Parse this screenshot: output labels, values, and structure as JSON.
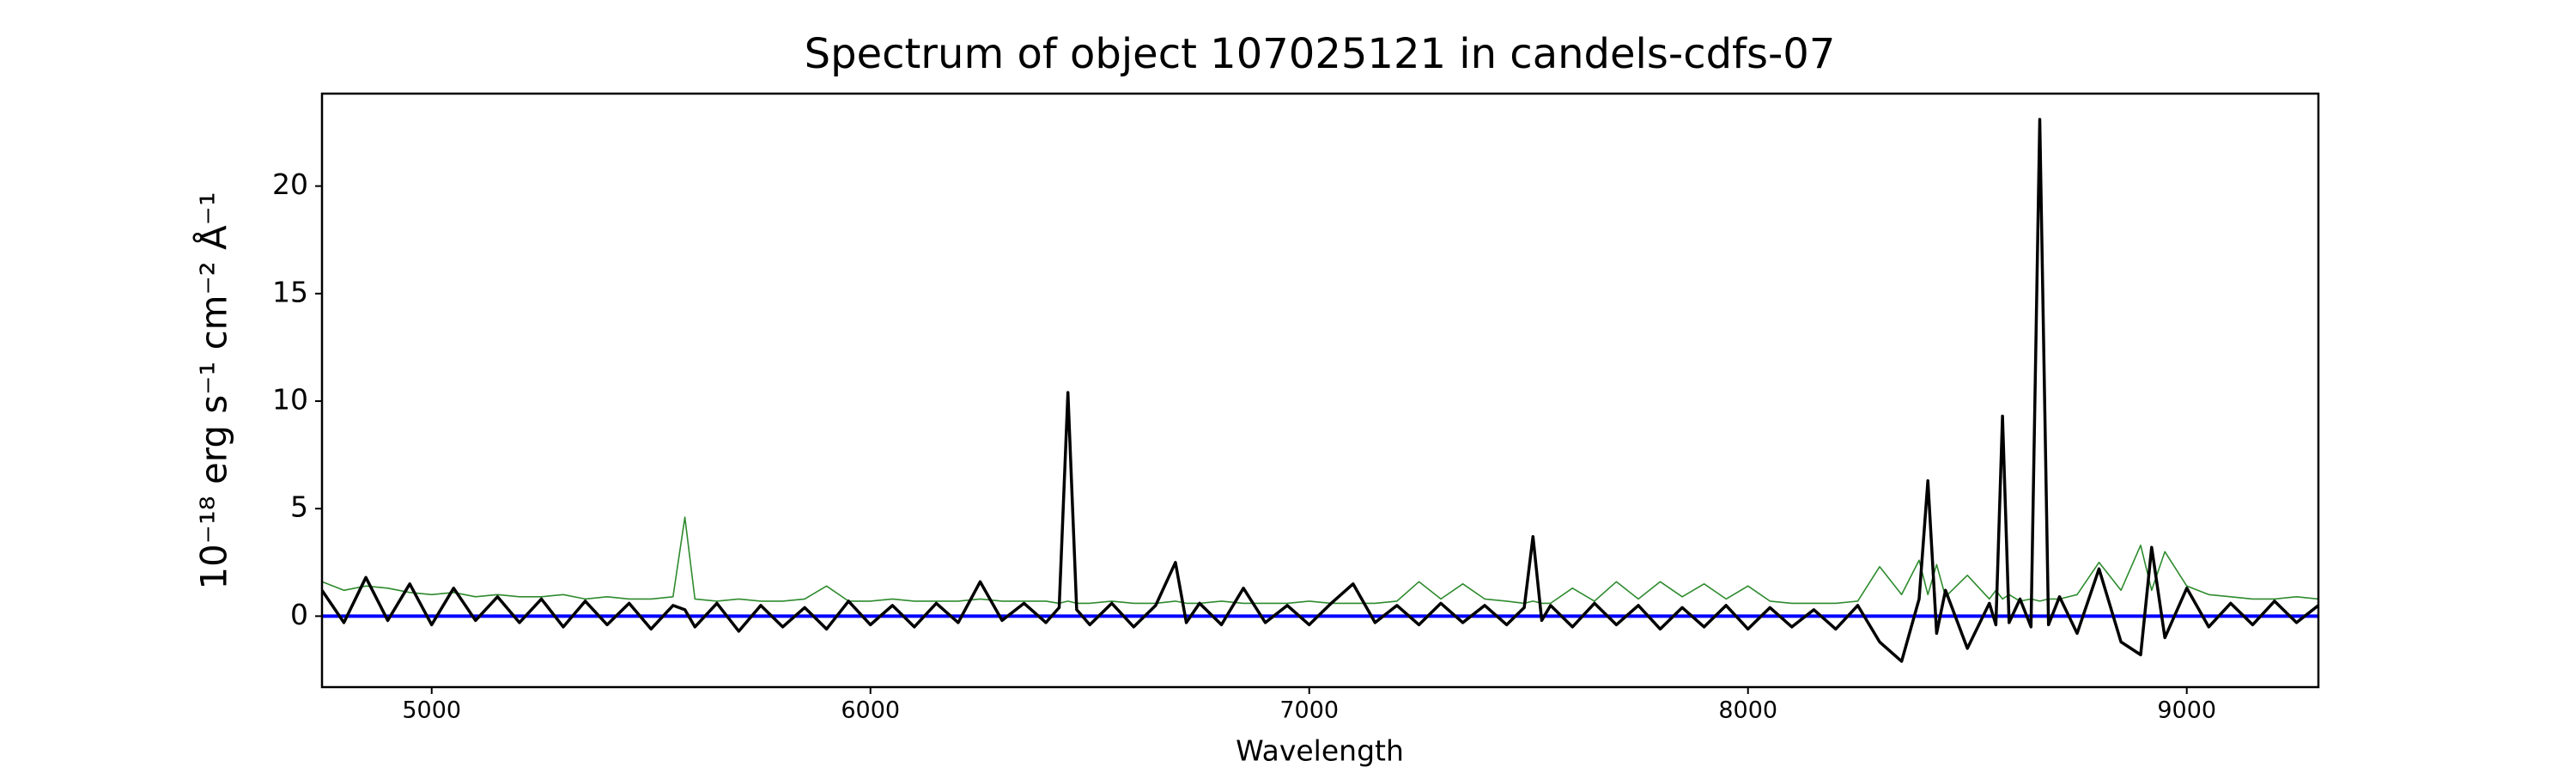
{
  "chart_data": {
    "type": "line",
    "title": "Spectrum of object 107025121 in candels-cdfs-07",
    "xlabel": "Wavelength",
    "ylabel": "10⁻¹⁸ erg s⁻¹ cm⁻² Å⁻¹",
    "xlim": [
      4750,
      9300
    ],
    "ylim": [
      -3.3,
      24.3
    ],
    "xticks": [
      5000,
      6000,
      7000,
      8000,
      9000
    ],
    "yticks": [
      0,
      5,
      10,
      15,
      20
    ],
    "x": [
      4750,
      4800,
      4850,
      4900,
      4950,
      5000,
      5050,
      5100,
      5150,
      5200,
      5250,
      5300,
      5350,
      5400,
      5450,
      5500,
      5550,
      5577,
      5600,
      5650,
      5700,
      5750,
      5800,
      5850,
      5900,
      5950,
      6000,
      6050,
      6100,
      6150,
      6200,
      6250,
      6300,
      6350,
      6400,
      6430,
      6450,
      6470,
      6500,
      6550,
      6600,
      6650,
      6695,
      6720,
      6750,
      6800,
      6850,
      6900,
      6950,
      7000,
      7050,
      7100,
      7150,
      7200,
      7250,
      7300,
      7350,
      7400,
      7450,
      7490,
      7510,
      7530,
      7550,
      7600,
      7650,
      7700,
      7750,
      7800,
      7850,
      7900,
      7950,
      8000,
      8050,
      8100,
      8150,
      8200,
      8250,
      8300,
      8350,
      8390,
      8410,
      8430,
      8450,
      8500,
      8550,
      8565,
      8580,
      8595,
      8620,
      8645,
      8665,
      8685,
      8710,
      8750,
      8800,
      8850,
      8895,
      8920,
      8950,
      9000,
      9050,
      9100,
      9150,
      9200,
      9250,
      9300
    ],
    "series": [
      {
        "color": "#2e8b2e",
        "values": [
          1.6,
          1.2,
          1.4,
          1.3,
          1.1,
          1.0,
          1.1,
          0.9,
          1.0,
          0.9,
          0.9,
          1.0,
          0.8,
          0.9,
          0.8,
          0.8,
          0.9,
          4.6,
          0.8,
          0.7,
          0.8,
          0.7,
          0.7,
          0.8,
          1.4,
          0.7,
          0.7,
          0.8,
          0.7,
          0.7,
          0.7,
          0.8,
          0.7,
          0.7,
          0.7,
          0.6,
          0.7,
          0.6,
          0.6,
          0.7,
          0.6,
          0.6,
          0.7,
          0.6,
          0.6,
          0.7,
          0.6,
          0.6,
          0.6,
          0.7,
          0.6,
          0.6,
          0.6,
          0.7,
          1.6,
          0.8,
          1.5,
          0.8,
          0.7,
          0.6,
          0.7,
          0.6,
          0.6,
          1.3,
          0.7,
          1.6,
          0.8,
          1.6,
          0.9,
          1.5,
          0.8,
          1.4,
          0.7,
          0.6,
          0.6,
          0.6,
          0.7,
          2.3,
          1.0,
          2.6,
          1.0,
          2.4,
          0.9,
          1.9,
          0.8,
          1.2,
          0.8,
          1.0,
          0.7,
          0.8,
          0.7,
          0.8,
          0.8,
          1.0,
          2.5,
          1.2,
          3.3,
          1.2,
          3.0,
          1.4,
          1.0,
          0.9,
          0.8,
          0.8,
          0.9,
          0.8
        ]
      },
      {
        "color": "#0000ff",
        "x": [
          4750,
          9300
        ],
        "values": [
          0,
          0
        ]
      },
      {
        "color": "#000000",
        "values": [
          1.2,
          -0.3,
          1.8,
          -0.2,
          1.5,
          -0.4,
          1.3,
          -0.2,
          0.9,
          -0.3,
          0.8,
          -0.5,
          0.7,
          -0.4,
          0.6,
          -0.6,
          0.5,
          0.3,
          -0.5,
          0.6,
          -0.7,
          0.5,
          -0.5,
          0.4,
          -0.6,
          0.7,
          -0.4,
          0.5,
          -0.5,
          0.6,
          -0.3,
          1.6,
          -0.2,
          0.6,
          -0.3,
          0.4,
          10.4,
          0.3,
          -0.4,
          0.6,
          -0.5,
          0.5,
          2.5,
          -0.3,
          0.6,
          -0.4,
          1.3,
          -0.3,
          0.5,
          -0.4,
          0.6,
          1.5,
          -0.3,
          0.5,
          -0.4,
          0.6,
          -0.3,
          0.5,
          -0.4,
          0.4,
          3.7,
          -0.2,
          0.5,
          -0.5,
          0.6,
          -0.4,
          0.5,
          -0.6,
          0.4,
          -0.5,
          0.5,
          -0.6,
          0.4,
          -0.5,
          0.3,
          -0.6,
          0.5,
          -1.2,
          -2.1,
          0.8,
          6.3,
          -0.8,
          1.2,
          -1.5,
          0.6,
          -0.4,
          9.3,
          -0.3,
          0.8,
          -0.5,
          23.1,
          -0.4,
          0.9,
          -0.8,
          2.2,
          -1.2,
          -1.8,
          3.2,
          -1.0,
          1.3,
          -0.5,
          0.6,
          -0.4,
          0.7,
          -0.3,
          0.5
        ]
      }
    ]
  }
}
